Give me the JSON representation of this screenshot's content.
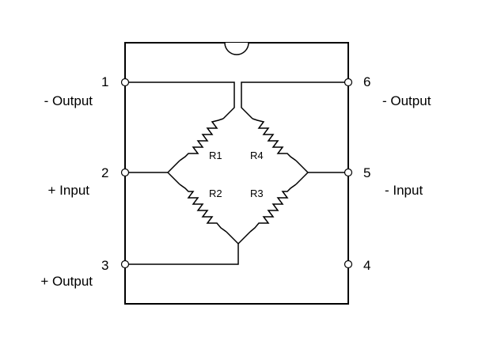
{
  "pins": [
    {
      "number": "1",
      "label": "- Output"
    },
    {
      "number": "2",
      "label": "+ Input"
    },
    {
      "number": "3",
      "label": "+ Output"
    },
    {
      "number": "4",
      "label": ""
    },
    {
      "number": "5",
      "label": "- Input"
    },
    {
      "number": "6",
      "label": "- Output"
    }
  ],
  "resistors": [
    {
      "label": "R1"
    },
    {
      "label": "R2"
    },
    {
      "label": "R3"
    },
    {
      "label": "R4"
    }
  ]
}
